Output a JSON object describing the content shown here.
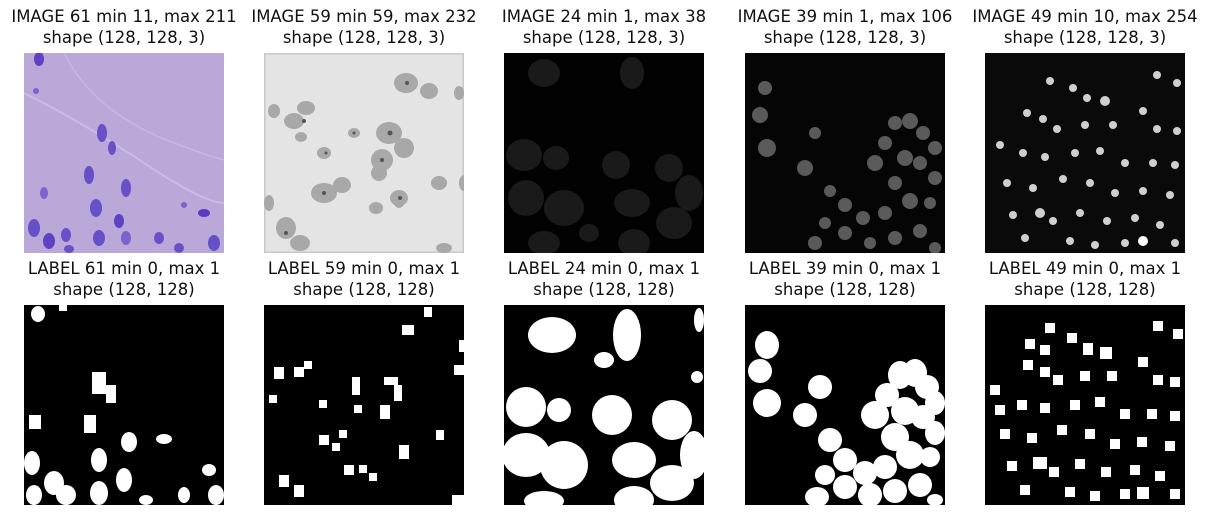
{
  "figure": {
    "images": [
      {
        "title_line1": "IMAGE 61 min 11, max 211",
        "title_line2": "shape (128, 128, 3)",
        "icon": "histology-stain-thumbnail"
      },
      {
        "title_line1": "IMAGE 59 min 59, max 232",
        "title_line2": "shape (128, 128, 3)",
        "icon": "brightfield-cells-thumbnail"
      },
      {
        "title_line1": "IMAGE 24 min 1, max 38",
        "title_line2": "shape (128, 128, 3)",
        "icon": "dim-fluorescence-thumbnail"
      },
      {
        "title_line1": "IMAGE 39 min 1, max 106",
        "title_line2": "shape (128, 128, 3)",
        "icon": "fluorescence-nuclei-thumbnail"
      },
      {
        "title_line1": "IMAGE 49 min 10, max 254",
        "title_line2": "shape (128, 128, 3)",
        "icon": "bright-nuclei-thumbnail"
      }
    ],
    "labels": [
      {
        "title_line1": "LABEL 61 min 0, max 1",
        "title_line2": "shape (128, 128)",
        "icon": "binary-mask-thumbnail"
      },
      {
        "title_line1": "LABEL 59 min 0, max 1",
        "title_line2": "shape (128, 128)",
        "icon": "binary-mask-thumbnail"
      },
      {
        "title_line1": "LABEL 24 min 0, max 1",
        "title_line2": "shape (128, 128)",
        "icon": "binary-mask-thumbnail"
      },
      {
        "title_line1": "LABEL 39 min 0, max 1",
        "title_line2": "shape (128, 128)",
        "icon": "binary-mask-thumbnail"
      },
      {
        "title_line1": "LABEL 49 min 0, max 1",
        "title_line2": "shape (128, 128)",
        "icon": "binary-mask-thumbnail"
      }
    ],
    "colors": {
      "stain_background": "#b9a6d6",
      "stain_nuclei": "#5b3fc2",
      "mask_background": "#000000",
      "mask_foreground": "#ffffff"
    }
  }
}
